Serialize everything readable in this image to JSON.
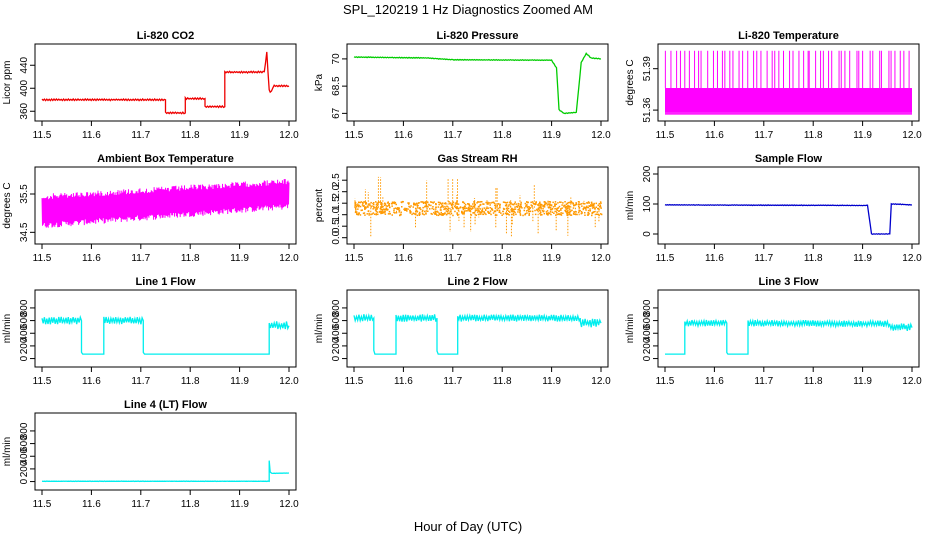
{
  "figure": {
    "title": "SPL_120219  1 Hz Diagnostics Zoomed AM",
    "xlabel": "Hour of Day (UTC)"
  },
  "chart_data": [
    {
      "type": "line",
      "title": "Li-820 CO2",
      "ylabel": "Licor ppm",
      "color": "#ee0000",
      "xlim": [
        11.5,
        12.0
      ],
      "ylim": [
        350,
        470
      ],
      "xticks": [
        "11.5",
        "11.6",
        "11.7",
        "11.8",
        "11.9",
        "12.0"
      ],
      "yticks": [
        360,
        400,
        440
      ],
      "series": [
        {
          "segments": [
            [
              [
                11.5,
                380
              ],
              [
                11.75,
                380
              ],
              [
                11.75,
                357
              ],
              [
                11.79,
                357
              ],
              [
                11.79,
                382
              ],
              [
                11.83,
                382
              ],
              [
                11.83,
                368
              ],
              [
                11.87,
                368
              ],
              [
                11.87,
                428
              ],
              [
                11.95,
                428
              ],
              [
                11.955,
                462
              ],
              [
                11.96,
                396
              ],
              [
                11.962,
                392
              ],
              [
                11.97,
                404
              ],
              [
                12.0,
                404
              ]
            ]
          ],
          "noise": 1.5
        }
      ]
    },
    {
      "type": "line",
      "title": "Li-820 Pressure",
      "ylabel": "kPa",
      "color": "#00cc00",
      "xlim": [
        11.5,
        12.0
      ],
      "ylim": [
        66.8,
        70.6
      ],
      "xticks": [
        "11.5",
        "11.6",
        "11.7",
        "11.8",
        "11.9",
        "12.0"
      ],
      "yticks": [
        67.0,
        68.5,
        70.0
      ],
      "series": [
        {
          "segments": [
            [
              [
                11.5,
                70.1
              ],
              [
                11.65,
                70.05
              ],
              [
                11.7,
                69.95
              ],
              [
                11.9,
                69.93
              ],
              [
                11.91,
                69.5
              ],
              [
                11.915,
                67.2
              ],
              [
                11.925,
                67.0
              ],
              [
                11.95,
                67.05
              ],
              [
                11.96,
                69.8
              ],
              [
                11.97,
                70.3
              ],
              [
                11.98,
                70.05
              ],
              [
                12.0,
                70.0
              ]
            ]
          ],
          "noise": 0.02
        }
      ]
    },
    {
      "type": "line",
      "title": "Li-820 Temperature",
      "ylabel": "degrees C",
      "color": "#ff00ff",
      "xlim": [
        11.5,
        12.0
      ],
      "ylim": [
        51.355,
        51.405
      ],
      "xticks": [
        "11.5",
        "11.6",
        "11.7",
        "11.8",
        "11.9",
        "12.0"
      ],
      "yticks": [
        "51.36",
        "51.39"
      ],
      "series": [
        {
          "band": [
            51.358,
            51.376
          ],
          "spikes": 55,
          "spike_top": 51.403
        }
      ]
    },
    {
      "type": "line",
      "title": "Ambient Box Temperature",
      "ylabel": "degrees C",
      "color": "#ff00ff",
      "xlim": [
        11.5,
        12.0
      ],
      "ylim": [
        34.3,
        36.1
      ],
      "xticks": [
        "11.5",
        "11.6",
        "11.7",
        "11.8",
        "11.9",
        "12.0"
      ],
      "yticks": [
        "34.5",
        "35.5"
      ],
      "series": [
        {
          "band_start": [
            34.6,
            35.5
          ],
          "band_end": [
            35.1,
            35.9
          ],
          "spread": 0.15
        }
      ]
    },
    {
      "type": "scatter",
      "title": "Gas Stream RH",
      "ylabel": "percent",
      "color": "#ff9900",
      "xlim": [
        11.5,
        12.0
      ],
      "ylim": [
        -0.1,
        2.9
      ],
      "xticks": [
        "11.5",
        "11.6",
        "11.7",
        "11.8",
        "11.9",
        "12.0"
      ],
      "yticks": [
        "0.0",
        "0.5",
        "1.0",
        "1.5",
        "2.0",
        "2.5"
      ],
      "series": [
        {
          "band": [
            1.0,
            1.6
          ],
          "outlier_range": [
            0.0,
            2.7
          ],
          "outliers": 60
        }
      ]
    },
    {
      "type": "line",
      "title": "Sample Flow",
      "ylabel": "ml/min",
      "color": "#0000cc",
      "xlim": [
        11.5,
        12.0
      ],
      "ylim": [
        -20,
        210
      ],
      "xticks": [
        "11.5",
        "11.6",
        "11.7",
        "11.8",
        "11.9",
        "12.0"
      ],
      "yticks": [
        0,
        100,
        200
      ],
      "series": [
        {
          "segments": [
            [
              [
                11.5,
                97
              ],
              [
                11.91,
                95
              ],
              [
                11.918,
                0
              ],
              [
                11.955,
                0
              ],
              [
                11.958,
                100
              ],
              [
                11.962,
                100
              ],
              [
                12.0,
                97
              ]
            ]
          ],
          "noise": 1
        }
      ]
    },
    {
      "type": "line",
      "title": "Line 1 Flow",
      "ylabel": "ml/min",
      "color": "#00eeee",
      "xlim": [
        11.5,
        12.0
      ],
      "ylim": [
        -70,
        1020
      ],
      "xticks": [
        "11.5",
        "11.6",
        "11.7",
        "11.8",
        "11.9",
        "12.0"
      ],
      "yticks": [
        0,
        200,
        400,
        600,
        800
      ],
      "series": [
        {
          "segments": [
            [
              [
                11.5,
                600
              ],
              [
                11.58,
                600
              ],
              [
                11.58,
                70
              ],
              [
                11.625,
                70
              ],
              [
                11.625,
                600
              ],
              [
                11.705,
                600
              ],
              [
                11.705,
                70
              ],
              [
                11.96,
                70
              ],
              [
                11.96,
                520
              ],
              [
                12.0,
                520
              ]
            ]
          ],
          "noise_ranges": [
            [
              11.5,
              11.58,
              60
            ],
            [
              11.625,
              11.705,
              60
            ],
            [
              11.96,
              12.0,
              70
            ]
          ]
        }
      ]
    },
    {
      "type": "line",
      "title": "Line 2 Flow",
      "ylabel": "ml/min",
      "color": "#00eeee",
      "xlim": [
        11.5,
        12.0
      ],
      "ylim": [
        -70,
        1020
      ],
      "xticks": [
        "11.5",
        "11.6",
        "11.7",
        "11.8",
        "11.9",
        "12.0"
      ],
      "yticks": [
        0,
        200,
        400,
        600,
        800
      ],
      "series": [
        {
          "segments": [
            [
              [
                11.5,
                640
              ],
              [
                11.54,
                640
              ],
              [
                11.54,
                70
              ],
              [
                11.585,
                70
              ],
              [
                11.585,
                640
              ],
              [
                11.668,
                640
              ],
              [
                11.668,
                70
              ],
              [
                11.71,
                70
              ],
              [
                11.71,
                640
              ],
              [
                11.958,
                640
              ],
              [
                11.958,
                560
              ],
              [
                12.0,
                560
              ]
            ]
          ],
          "noise_ranges": [
            [
              11.5,
              11.54,
              60
            ],
            [
              11.585,
              11.668,
              60
            ],
            [
              11.71,
              11.958,
              55
            ],
            [
              11.958,
              12.0,
              70
            ]
          ]
        }
      ]
    },
    {
      "type": "line",
      "title": "Line 3 Flow",
      "ylabel": "ml/min",
      "color": "#00eeee",
      "xlim": [
        11.5,
        12.0
      ],
      "ylim": [
        -70,
        1020
      ],
      "xticks": [
        "11.5",
        "11.6",
        "11.7",
        "11.8",
        "11.9",
        "12.0"
      ],
      "yticks": [
        0,
        200,
        400,
        600,
        800
      ],
      "series": [
        {
          "segments": [
            [
              [
                11.5,
                70
              ],
              [
                11.54,
                70
              ],
              [
                11.54,
                560
              ],
              [
                11.625,
                560
              ],
              [
                11.625,
                70
              ],
              [
                11.668,
                70
              ],
              [
                11.668,
                560
              ],
              [
                11.955,
                550
              ],
              [
                11.955,
                500
              ],
              [
                12.0,
                490
              ]
            ]
          ],
          "noise_ranges": [
            [
              11.54,
              11.625,
              50
            ],
            [
              11.668,
              11.955,
              50
            ],
            [
              11.955,
              12.0,
              60
            ]
          ]
        }
      ]
    },
    {
      "type": "line",
      "title": "Line 4 (LT) Flow",
      "ylabel": "ml/min",
      "color": "#00eeee",
      "xlim": [
        11.5,
        12.0
      ],
      "ylim": [
        -70,
        1020
      ],
      "xticks": [
        "11.5",
        "11.6",
        "11.7",
        "11.8",
        "11.9",
        "12.0"
      ],
      "yticks": [
        0,
        200,
        400,
        600,
        800
      ],
      "series": [
        {
          "segments": [
            [
              [
                11.5,
                5
              ],
              [
                11.96,
                5
              ],
              [
                11.96,
                330
              ],
              [
                11.962,
                150
              ],
              [
                11.965,
                130
              ],
              [
                12.0,
                135
              ]
            ]
          ],
          "noise": 2
        }
      ]
    }
  ]
}
